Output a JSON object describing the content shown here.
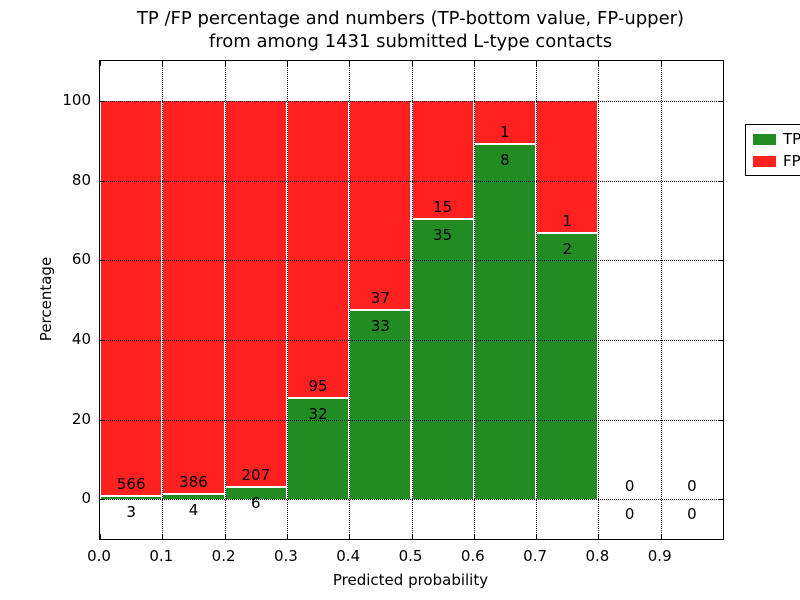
{
  "colors": {
    "tp_green": "#228b22",
    "fp_red": "#ff2020",
    "axis": "#000000",
    "background": "#ffffff",
    "text": "#000000"
  },
  "chart_data": {
    "type": "bar",
    "stacked": true,
    "title_line1": "TP /FP percentage and numbers (TP-bottom value, FP-upper)",
    "title_line2": "from among 1431 submitted L-type contacts",
    "xlabel": "Predicted probability",
    "ylabel": "Percentage",
    "xlim": [
      0.0,
      1.0
    ],
    "ylim": [
      -10,
      110
    ],
    "x_tick_values": [
      0.0,
      0.1,
      0.2,
      0.3,
      0.4,
      0.5,
      0.6,
      0.7,
      0.8,
      0.9
    ],
    "x_tick_labels": [
      "0.0",
      "0.1",
      "0.2",
      "0.3",
      "0.4",
      "0.5",
      "0.6",
      "0.7",
      "0.8",
      "0.9"
    ],
    "y_tick_values": [
      0,
      20,
      40,
      60,
      80,
      100
    ],
    "y_tick_labels": [
      "0",
      "20",
      "40",
      "60",
      "80",
      "100"
    ],
    "grid": "dotted black, both axes",
    "annotation_rule": "FP count above TP segment top, TP count below it",
    "total_contacts": 1431,
    "legend": {
      "position": "upper right",
      "entries": [
        {
          "name": "TP",
          "label": "TP",
          "color": "#228b22"
        },
        {
          "name": "FP",
          "label": "FP",
          "color": "#ff2020"
        }
      ]
    },
    "series": [
      {
        "name": "TP",
        "counts": [
          3,
          4,
          6,
          32,
          33,
          35,
          8,
          2,
          0,
          0
        ]
      },
      {
        "name": "FP",
        "counts": [
          566,
          386,
          207,
          95,
          37,
          15,
          1,
          1,
          0,
          0
        ]
      }
    ],
    "bins": [
      {
        "range": [
          0.0,
          0.1
        ],
        "tp_count": 3,
        "fp_count": 566,
        "tp_pct": 0.53,
        "fp_pct": 99.47
      },
      {
        "range": [
          0.1,
          0.2
        ],
        "tp_count": 4,
        "fp_count": 386,
        "tp_pct": 1.03,
        "fp_pct": 98.97
      },
      {
        "range": [
          0.2,
          0.3
        ],
        "tp_count": 6,
        "fp_count": 207,
        "tp_pct": 2.82,
        "fp_pct": 97.18
      },
      {
        "range": [
          0.3,
          0.4
        ],
        "tp_count": 32,
        "fp_count": 95,
        "tp_pct": 25.2,
        "fp_pct": 74.8
      },
      {
        "range": [
          0.4,
          0.5
        ],
        "tp_count": 33,
        "fp_count": 37,
        "tp_pct": 47.14,
        "fp_pct": 52.86
      },
      {
        "range": [
          0.5,
          0.6
        ],
        "tp_count": 35,
        "fp_count": 15,
        "tp_pct": 70.0,
        "fp_pct": 30.0
      },
      {
        "range": [
          0.6,
          0.7
        ],
        "tp_count": 8,
        "fp_count": 1,
        "tp_pct": 88.89,
        "fp_pct": 11.11
      },
      {
        "range": [
          0.7,
          0.8
        ],
        "tp_count": 2,
        "fp_count": 1,
        "tp_pct": 66.67,
        "fp_pct": 33.33
      },
      {
        "range": [
          0.8,
          0.9
        ],
        "tp_count": 0,
        "fp_count": 0,
        "tp_pct": 0,
        "fp_pct": 0
      },
      {
        "range": [
          0.9,
          1.0
        ],
        "tp_count": 0,
        "fp_count": 0,
        "tp_pct": 0,
        "fp_pct": 0
      }
    ]
  }
}
